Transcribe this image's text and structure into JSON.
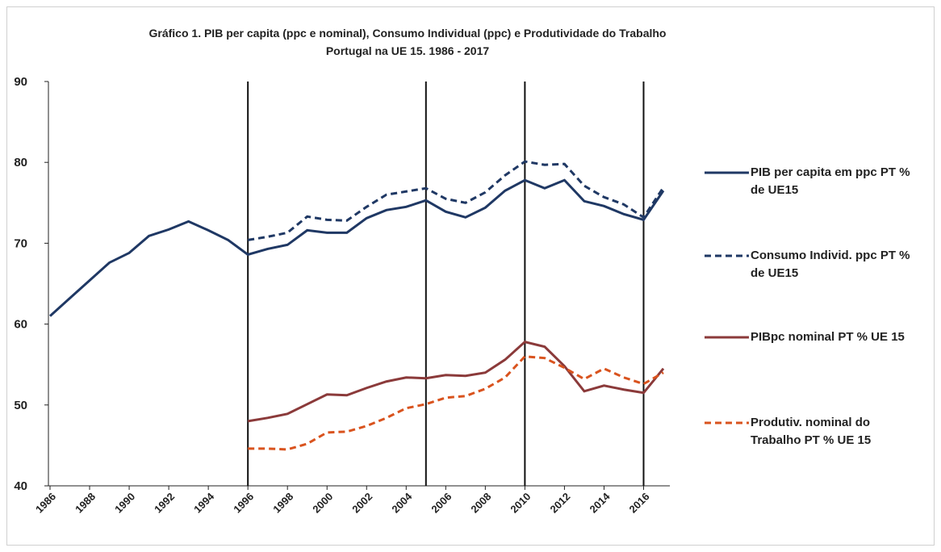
{
  "chart_data": {
    "type": "line",
    "title": "Gráfico 1. PIB per capita (ppc e nominal), Consumo Individual (ppc) e Produtividade do Trabalho",
    "subtitle": "Portugal na UE 15. 1986 - 2017",
    "x": [
      1986,
      1987,
      1988,
      1989,
      1990,
      1991,
      1992,
      1993,
      1994,
      1995,
      1996,
      1997,
      1998,
      1999,
      2000,
      2001,
      2002,
      2003,
      2004,
      2005,
      2006,
      2007,
      2008,
      2009,
      2010,
      2011,
      2012,
      2013,
      2014,
      2015,
      2016,
      2017
    ],
    "xlim": [
      1986,
      2017
    ],
    "xticks": [
      1986,
      1988,
      1990,
      1992,
      1994,
      1996,
      1998,
      2000,
      2002,
      2004,
      2006,
      2008,
      2010,
      2012,
      2014,
      2016
    ],
    "ylim": [
      40,
      90
    ],
    "yticks": [
      40,
      50,
      60,
      70,
      80,
      90
    ],
    "vertical_lines": [
      1996,
      2005,
      2010,
      2016
    ],
    "legend": "right",
    "series": [
      {
        "name": "PIB per capita em ppc PT % de UE15",
        "color": "#1f3864",
        "dash": false,
        "values": [
          61.0,
          63.2,
          65.4,
          67.6,
          68.8,
          70.9,
          71.7,
          72.7,
          71.6,
          70.4,
          68.6,
          69.3,
          69.8,
          71.6,
          71.3,
          71.3,
          73.1,
          74.1,
          74.5,
          75.3,
          73.9,
          73.2,
          74.4,
          76.5,
          77.8,
          76.8,
          77.8,
          75.2,
          74.6,
          73.6,
          72.9,
          76.5
        ]
      },
      {
        "name": "Consumo Individ.  ppc PT % de UE15",
        "color": "#1f3864",
        "dash": true,
        "values": [
          null,
          null,
          null,
          null,
          null,
          null,
          null,
          null,
          null,
          null,
          70.4,
          70.8,
          71.3,
          73.3,
          72.9,
          72.8,
          74.5,
          76.0,
          76.4,
          76.8,
          75.5,
          75.0,
          76.3,
          78.4,
          80.1,
          79.7,
          79.8,
          77.1,
          75.7,
          74.8,
          73.2,
          76.9
        ]
      },
      {
        "name": "PIBpc nominal PT % UE 15",
        "color": "#8b3a3a",
        "dash": false,
        "values": [
          null,
          null,
          null,
          null,
          null,
          null,
          null,
          null,
          null,
          null,
          48.0,
          48.4,
          48.9,
          50.1,
          51.3,
          51.2,
          52.1,
          52.9,
          53.4,
          53.3,
          53.7,
          53.6,
          54.0,
          55.6,
          57.8,
          57.2,
          54.8,
          51.7,
          52.4,
          51.9,
          51.5,
          54.5
        ]
      },
      {
        "name": "Produtiv. nominal do Trabalho PT % UE 15",
        "color": "#d9531e",
        "dash": true,
        "values": [
          null,
          null,
          null,
          null,
          null,
          null,
          null,
          null,
          null,
          null,
          44.6,
          44.6,
          44.5,
          45.2,
          46.6,
          46.7,
          47.4,
          48.4,
          49.6,
          50.1,
          50.9,
          51.1,
          52.0,
          53.4,
          56.0,
          55.8,
          54.6,
          53.2,
          54.5,
          53.4,
          52.6,
          54.0
        ]
      }
    ]
  }
}
